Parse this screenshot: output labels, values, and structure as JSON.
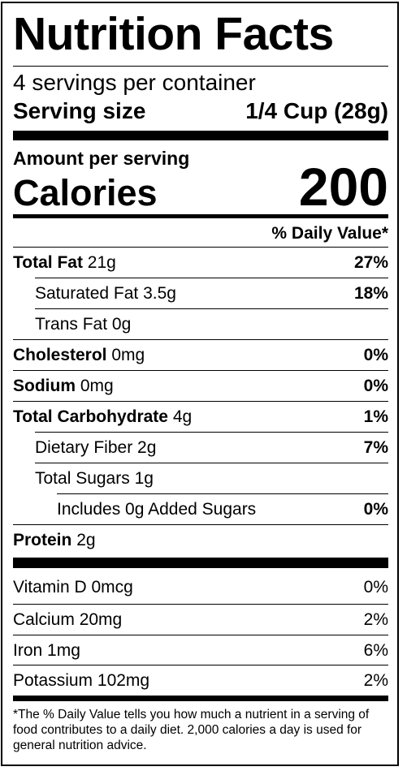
{
  "title": "Nutrition Facts",
  "servings_per_container": "4 servings per container",
  "serving_size": {
    "label": "Serving size",
    "value": "1/4 Cup (28g)"
  },
  "amount_per_serving": "Amount per serving",
  "calories": {
    "label": "Calories",
    "value": "200"
  },
  "daily_value_header": "% Daily Value*",
  "nutrients": [
    {
      "name": "Total Fat",
      "amount": "21g",
      "dv": "27%"
    },
    {
      "name": "Saturated Fat",
      "amount": "3.5g",
      "dv": "18%"
    },
    {
      "name": "Trans Fat",
      "amount": "0g",
      "dv": ""
    },
    {
      "name": "Cholesterol",
      "amount": "0mg",
      "dv": "0%"
    },
    {
      "name": "Sodium",
      "amount": "0mg",
      "dv": "0%"
    },
    {
      "name": "Total Carbohydrate",
      "amount": "4g",
      "dv": "1%"
    },
    {
      "name": "Dietary Fiber",
      "amount": "2g",
      "dv": "7%"
    },
    {
      "name": "Total Sugars",
      "amount": "1g",
      "dv": ""
    },
    {
      "name": "Includes 0g Added Sugars",
      "amount": "",
      "dv": "0%"
    },
    {
      "name": "Protein",
      "amount": "2g",
      "dv": ""
    }
  ],
  "vitamins": [
    {
      "name": "Vitamin D",
      "amount": "0mcg",
      "dv": "0%"
    },
    {
      "name": "Calcium",
      "amount": "20mg",
      "dv": "2%"
    },
    {
      "name": "Iron",
      "amount": "1mg",
      "dv": "6%"
    },
    {
      "name": "Potassium",
      "amount": "102mg",
      "dv": "2%"
    }
  ],
  "footnote": "*The % Daily Value tells you how much a nutrient in a serving of food contributes to a daily diet. 2,000 calories a day is used for general nutrition advice."
}
